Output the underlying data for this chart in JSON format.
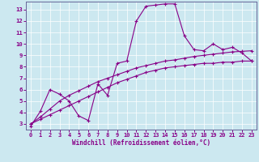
{
  "xlabel": "Windchill (Refroidissement éolien,°C)",
  "bg_color": "#cce8f0",
  "line_color": "#880088",
  "xlim": [
    -0.5,
    23.5
  ],
  "ylim": [
    2.5,
    13.7
  ],
  "xticks": [
    0,
    1,
    2,
    3,
    4,
    5,
    6,
    7,
    8,
    9,
    10,
    11,
    12,
    13,
    14,
    15,
    16,
    17,
    18,
    19,
    20,
    21,
    22,
    23
  ],
  "yticks": [
    3,
    4,
    5,
    6,
    7,
    8,
    9,
    10,
    11,
    12,
    13
  ],
  "s1_x": [
    0,
    1,
    2,
    3,
    4,
    5,
    6,
    7,
    8,
    9,
    10,
    11,
    12,
    13,
    14,
    15,
    16,
    17,
    18,
    19,
    20,
    21,
    22,
    23
  ],
  "s1_y": [
    2.8,
    4.1,
    6.0,
    5.6,
    5.0,
    3.7,
    3.3,
    6.5,
    5.5,
    8.3,
    8.5,
    12.0,
    13.3,
    13.4,
    13.5,
    13.5,
    10.7,
    9.5,
    9.4,
    10.0,
    9.5,
    9.7,
    9.2,
    8.5
  ],
  "s2_x": [
    0,
    1,
    2,
    3,
    4,
    5,
    6,
    7,
    8,
    9,
    10,
    11,
    12,
    13,
    14,
    15,
    16,
    17,
    18,
    19,
    20,
    21,
    22,
    23
  ],
  "s2_y": [
    3.0,
    3.4,
    3.8,
    4.2,
    4.6,
    5.0,
    5.4,
    5.8,
    6.2,
    6.6,
    6.9,
    7.2,
    7.5,
    7.7,
    7.9,
    8.0,
    8.1,
    8.2,
    8.3,
    8.3,
    8.4,
    8.4,
    8.5,
    8.5
  ],
  "s3_x": [
    0,
    1,
    2,
    3,
    4,
    5,
    6,
    7,
    8,
    9,
    10,
    11,
    12,
    13,
    14,
    15,
    16,
    17,
    18,
    19,
    20,
    21,
    22,
    23
  ],
  "s3_y": [
    3.0,
    3.6,
    4.3,
    5.0,
    5.5,
    5.9,
    6.3,
    6.7,
    7.0,
    7.3,
    7.6,
    7.9,
    8.1,
    8.3,
    8.5,
    8.6,
    8.75,
    8.9,
    9.0,
    9.1,
    9.2,
    9.3,
    9.35,
    9.4
  ]
}
